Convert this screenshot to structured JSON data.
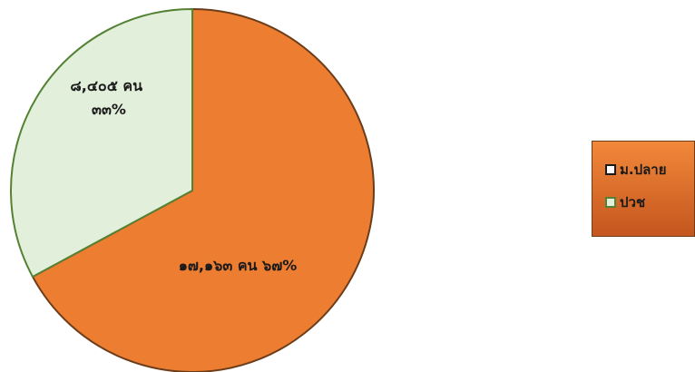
{
  "chart_data": {
    "type": "pie",
    "slices": [
      {
        "name": "ม.ปลาย",
        "value": 17163,
        "percent": 67,
        "color": "#ed7d31",
        "label_lines": [
          "๑๗,๑๖๓ คน ๖๗%"
        ]
      },
      {
        "name": "ปวช",
        "value": 8405,
        "percent": 33,
        "color": "#e2efda",
        "label_lines": [
          "๘,๔๐๕ คน",
          "๓๓%"
        ]
      }
    ],
    "border_colors": [
      "#6b3d1a",
      "#548235"
    ],
    "legend": {
      "placement": "right",
      "background": "#d9662a",
      "items": [
        {
          "label": "ม.ปลาย",
          "swatch_fill": "#ffffff",
          "swatch_border": "#1a1a1a"
        },
        {
          "label": "ปวช",
          "swatch_fill": "#e2efda",
          "swatch_border": "#548235"
        }
      ]
    }
  }
}
